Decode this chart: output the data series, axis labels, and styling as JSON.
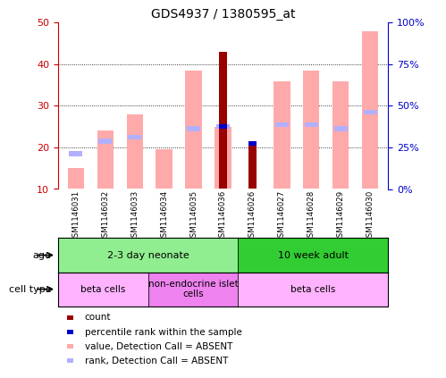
{
  "title": "GDS4937 / 1380595_at",
  "samples": [
    "GSM1146031",
    "GSM1146032",
    "GSM1146033",
    "GSM1146034",
    "GSM1146035",
    "GSM1146036",
    "GSM1146026",
    "GSM1146027",
    "GSM1146028",
    "GSM1146029",
    "GSM1146030"
  ],
  "value_absent": [
    15,
    24,
    28,
    19.5,
    38.5,
    25,
    null,
    36,
    38.5,
    36,
    48
  ],
  "rank_absent": [
    18.5,
    21.5,
    22.5,
    null,
    24.5,
    25,
    null,
    25.5,
    25.5,
    24.5,
    28.5
  ],
  "count": [
    null,
    null,
    null,
    null,
    null,
    43,
    21,
    null,
    null,
    null,
    null
  ],
  "percentile_rank": [
    null,
    null,
    null,
    null,
    null,
    25,
    21,
    null,
    null,
    null,
    null
  ],
  "ylim": [
    10,
    50
  ],
  "yticks": [
    10,
    20,
    30,
    40,
    50
  ],
  "right_yticks": [
    0,
    25,
    50,
    75,
    100
  ],
  "right_ylabels": [
    "0%",
    "25%",
    "50%",
    "75%",
    "100%"
  ],
  "bar_bottom": 10,
  "age_groups": [
    {
      "label": "2-3 day neonate",
      "start": 0,
      "end": 6,
      "color": "#90ee90"
    },
    {
      "label": "10 week adult",
      "start": 6,
      "end": 11,
      "color": "#32cd32"
    }
  ],
  "cell_groups": [
    {
      "label": "beta cells",
      "start": 0,
      "end": 3,
      "color": "#ffb3ff"
    },
    {
      "label": "non-endocrine islet\ncells",
      "start": 3,
      "end": 6,
      "color": "#ee82ee"
    },
    {
      "label": "beta cells",
      "start": 6,
      "end": 11,
      "color": "#ffb3ff"
    }
  ],
  "color_value_absent": "#ffaaaa",
  "color_rank_absent": "#b0b0ff",
  "color_count": "#990000",
  "color_percentile": "#0000cc",
  "ylabel_color_left": "#cc0000",
  "ylabel_color_right": "#0000cc",
  "legend_items": [
    {
      "color": "#990000",
      "label": "count"
    },
    {
      "color": "#0000cc",
      "label": "percentile rank within the sample"
    },
    {
      "color": "#ffaaaa",
      "label": "value, Detection Call = ABSENT"
    },
    {
      "color": "#b0b0ff",
      "label": "rank, Detection Call = ABSENT"
    }
  ]
}
